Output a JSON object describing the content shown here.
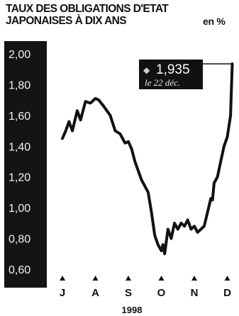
{
  "title": "TAUX DES OBLIGATIONS D'ETAT JAPONAISES À DIX ANS",
  "unit": "en %",
  "chart_data": {
    "type": "line",
    "title": "TAUX DES OBLIGATIONS D'ETAT JAPONAISES À DIX ANS",
    "ylabel": "en %",
    "xlabel": "1998",
    "ylim": [
      0.6,
      2.0
    ],
    "yticks": [
      "2,00",
      "1,80",
      "1,60",
      "1,40",
      "1,20",
      "1,00",
      "0,80",
      "0,60"
    ],
    "ytick_values": [
      2.0,
      1.8,
      1.6,
      1.4,
      1.2,
      1.0,
      0.8,
      0.6
    ],
    "x_months": [
      "J",
      "A",
      "S",
      "O",
      "N",
      "D"
    ],
    "year": "1998",
    "grid": false,
    "series": [
      {
        "color": "#111111",
        "points": [
          [
            0.0,
            1.45
          ],
          [
            0.1,
            1.5
          ],
          [
            0.2,
            1.56
          ],
          [
            0.3,
            1.5
          ],
          [
            0.45,
            1.63
          ],
          [
            0.55,
            1.57
          ],
          [
            0.7,
            1.69
          ],
          [
            0.85,
            1.68
          ],
          [
            1.0,
            1.71
          ],
          [
            1.1,
            1.7
          ],
          [
            1.25,
            1.66
          ],
          [
            1.45,
            1.6
          ],
          [
            1.6,
            1.5
          ],
          [
            1.75,
            1.48
          ],
          [
            1.9,
            1.42
          ],
          [
            2.0,
            1.43
          ],
          [
            2.1,
            1.38
          ],
          [
            2.2,
            1.3
          ],
          [
            2.3,
            1.24
          ],
          [
            2.4,
            1.18
          ],
          [
            2.5,
            1.14
          ],
          [
            2.6,
            1.1
          ],
          [
            2.7,
            0.97
          ],
          [
            2.8,
            0.82
          ],
          [
            2.9,
            0.76
          ],
          [
            3.0,
            0.72
          ],
          [
            3.05,
            0.76
          ],
          [
            3.1,
            0.7
          ],
          [
            3.2,
            0.86
          ],
          [
            3.3,
            0.8
          ],
          [
            3.4,
            0.9
          ],
          [
            3.5,
            0.86
          ],
          [
            3.6,
            0.9
          ],
          [
            3.7,
            0.88
          ],
          [
            3.8,
            0.92
          ],
          [
            3.9,
            0.86
          ],
          [
            4.0,
            0.88
          ],
          [
            4.1,
            0.84
          ],
          [
            4.2,
            0.86
          ],
          [
            4.3,
            0.88
          ],
          [
            4.4,
            0.97
          ],
          [
            4.5,
            1.06
          ],
          [
            4.55,
            1.05
          ],
          [
            4.6,
            1.16
          ],
          [
            4.7,
            1.2
          ],
          [
            4.8,
            1.3
          ],
          [
            4.9,
            1.4
          ],
          [
            5.0,
            1.46
          ],
          [
            5.1,
            1.6
          ],
          [
            5.15,
            1.935
          ]
        ]
      }
    ],
    "callout": {
      "value": "1,935",
      "date": "le 22 déc."
    }
  },
  "colors": {
    "panel": "#141414",
    "line": "#111111",
    "background": "#ffffff"
  }
}
